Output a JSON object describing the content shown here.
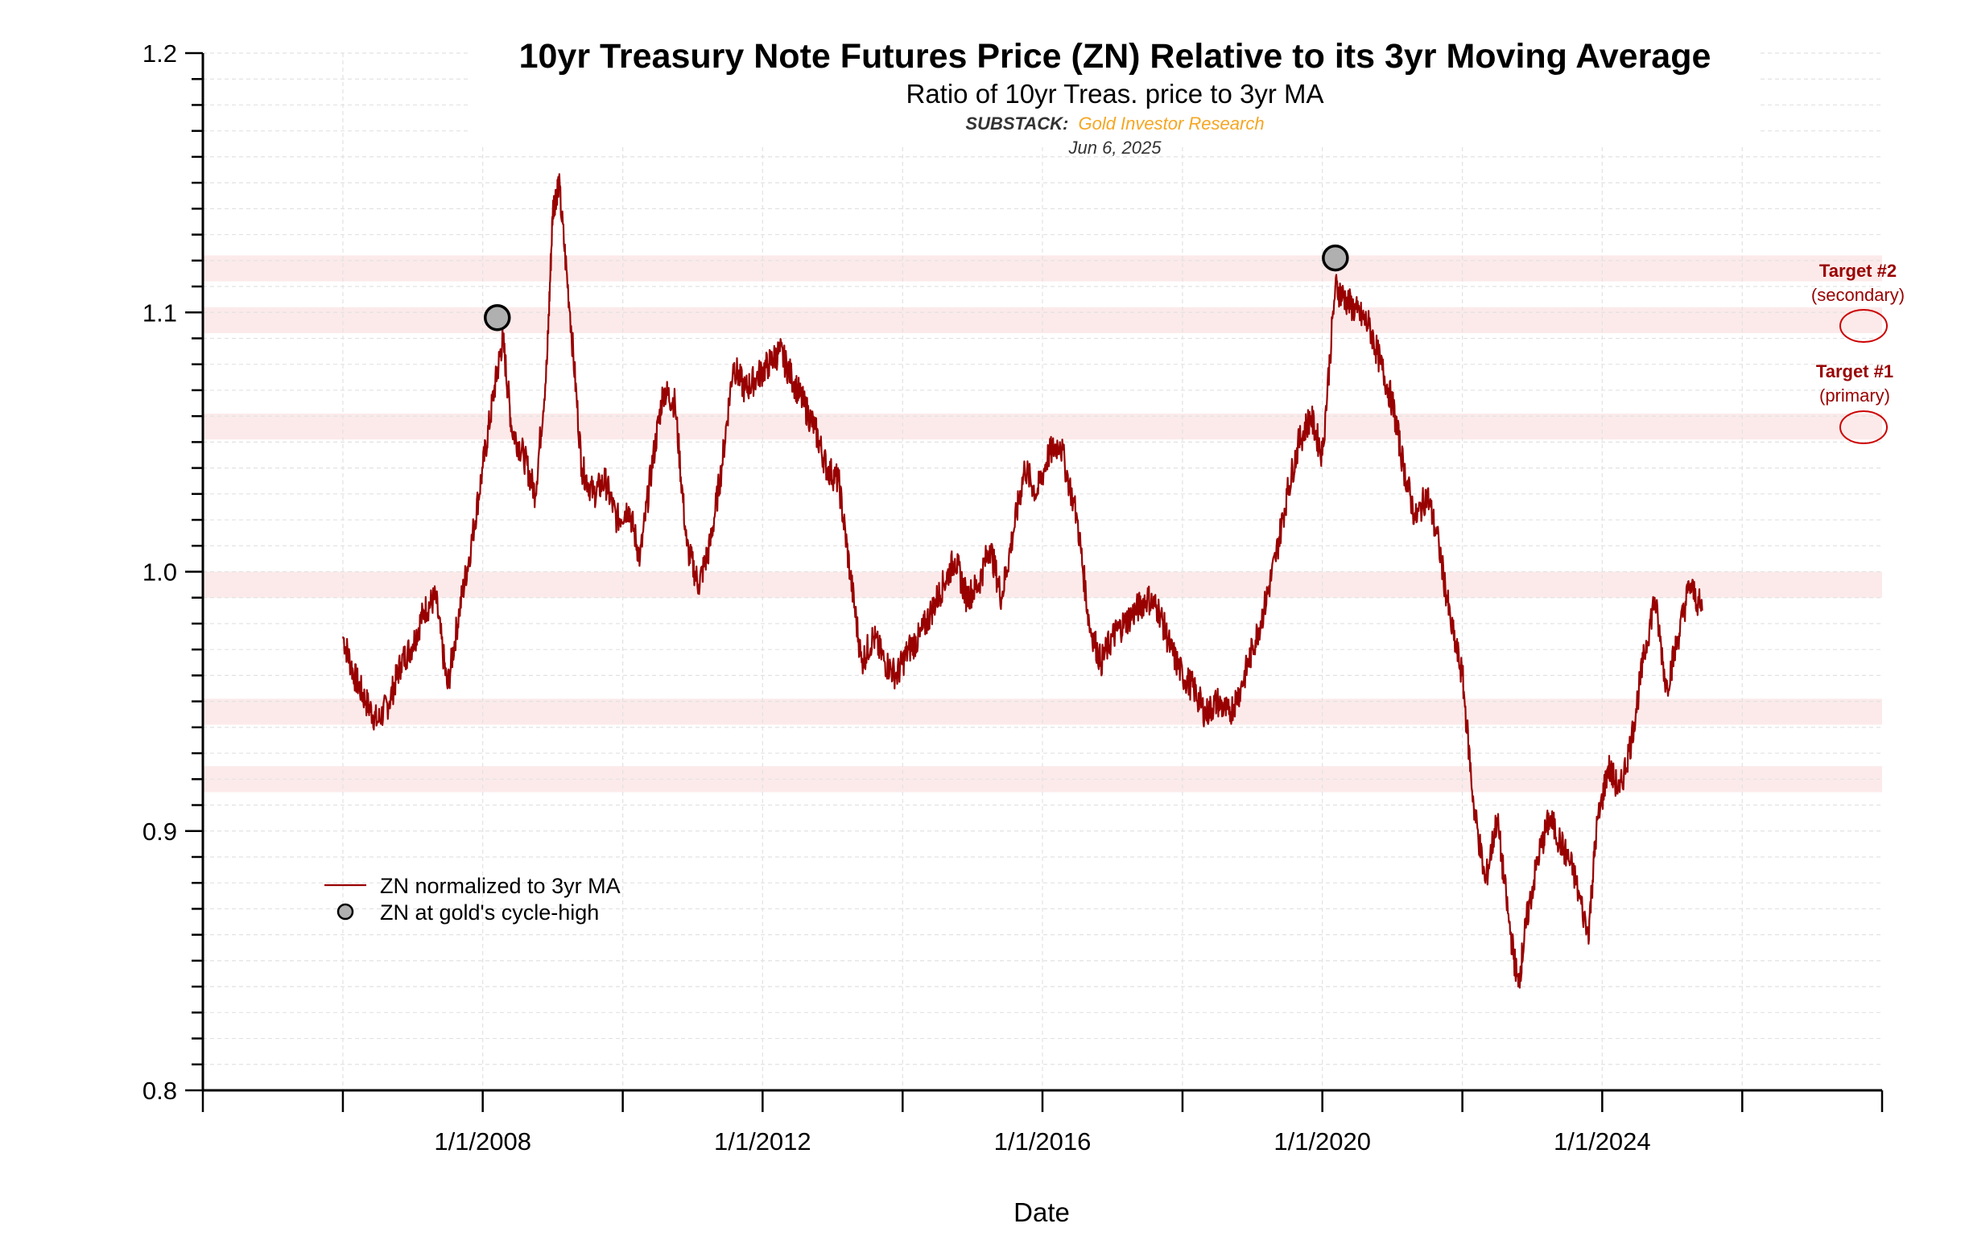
{
  "chart_data": {
    "type": "line",
    "title": "10yr Treasury Note Futures Price (ZN) Relative to its 3yr Moving Average",
    "subtitle": "Ratio of 10yr Treas. price to 3yr MA",
    "source_label": "SUBSTACK:",
    "source_name": "Gold Investor Research",
    "date": "Jun 6, 2025",
    "xlabel": "Date",
    "ylabel": "",
    "ylim": [
      0.8,
      1.2
    ],
    "xlim": [
      "2004-01-01",
      "2028-01-01"
    ],
    "yticks": [
      "0.8",
      "0.9",
      "1.0",
      "1.1",
      "1.2"
    ],
    "xticks": [
      "1/1/2008",
      "1/1/2012",
      "1/1/2016",
      "1/1/2020",
      "1/1/2024"
    ],
    "grid": true,
    "legend_position": "lower-left",
    "colors": {
      "line": "#990000",
      "band": "#fbe3e3",
      "marker_fill": "#b0b0b0",
      "marker_edge": "#000000",
      "source_accent": "#f5a623",
      "source_label": "#333333",
      "target": "#990000"
    },
    "horizontal_bands": [
      {
        "from": 0.915,
        "to": 0.925
      },
      {
        "from": 0.941,
        "to": 0.951
      },
      {
        "from": 0.99,
        "to": 1.0
      },
      {
        "from": 1.051,
        "to": 1.061
      },
      {
        "from": 1.092,
        "to": 1.102
      },
      {
        "from": 1.112,
        "to": 1.122
      }
    ],
    "series": [
      {
        "name": "ZN normalized to 3yr MA",
        "x": [
          "2006-01-01",
          "2006-03-01",
          "2006-05-01",
          "2006-07-01",
          "2006-09-01",
          "2006-11-01",
          "2007-01-01",
          "2007-03-01",
          "2007-05-01",
          "2007-07-01",
          "2007-09-01",
          "2007-11-01",
          "2008-01-01",
          "2008-03-01",
          "2008-04-15",
          "2008-06-01",
          "2008-08-01",
          "2008-10-01",
          "2008-12-01",
          "2009-01-01",
          "2009-02-01",
          "2009-04-01",
          "2009-06-01",
          "2009-08-01",
          "2009-10-01",
          "2009-12-01",
          "2010-02-01",
          "2010-04-01",
          "2010-06-01",
          "2010-08-01",
          "2010-10-01",
          "2010-12-01",
          "2011-02-01",
          "2011-04-01",
          "2011-06-01",
          "2011-08-01",
          "2011-10-01",
          "2011-12-01",
          "2012-02-01",
          "2012-04-01",
          "2012-06-01",
          "2012-08-01",
          "2012-10-01",
          "2012-12-01",
          "2013-02-01",
          "2013-04-01",
          "2013-06-01",
          "2013-08-01",
          "2013-10-01",
          "2013-12-01",
          "2014-02-01",
          "2014-04-01",
          "2014-06-01",
          "2014-08-01",
          "2014-10-01",
          "2014-12-01",
          "2015-02-01",
          "2015-04-01",
          "2015-06-01",
          "2015-08-01",
          "2015-10-01",
          "2015-12-01",
          "2016-02-01",
          "2016-04-01",
          "2016-07-01",
          "2016-09-01",
          "2016-11-01",
          "2017-01-01",
          "2017-03-01",
          "2017-05-01",
          "2017-07-01",
          "2017-09-01",
          "2017-11-01",
          "2018-01-01",
          "2018-03-01",
          "2018-05-01",
          "2018-07-01",
          "2018-09-01",
          "2018-11-01",
          "2019-01-01",
          "2019-03-01",
          "2019-05-01",
          "2019-07-01",
          "2019-09-01",
          "2019-11-01",
          "2020-01-01",
          "2020-03-09",
          "2020-05-01",
          "2020-07-01",
          "2020-09-01",
          "2020-11-01",
          "2021-01-01",
          "2021-03-01",
          "2021-05-01",
          "2021-07-01",
          "2021-09-01",
          "2021-11-01",
          "2022-01-01",
          "2022-03-01",
          "2022-05-01",
          "2022-07-01",
          "2022-09-01",
          "2022-10-20",
          "2022-12-01",
          "2023-02-01",
          "2023-04-01",
          "2023-06-01",
          "2023-08-01",
          "2023-10-20",
          "2023-12-01",
          "2024-02-01",
          "2024-04-01",
          "2024-06-01",
          "2024-08-01",
          "2024-10-01",
          "2024-12-01",
          "2025-02-01",
          "2025-04-01",
          "2025-06-06"
        ],
        "y": [
          0.975,
          0.96,
          0.95,
          0.942,
          0.95,
          0.965,
          0.972,
          0.985,
          0.99,
          0.955,
          0.985,
          1.01,
          1.04,
          1.07,
          1.09,
          1.055,
          1.045,
          1.03,
          1.08,
          1.14,
          1.15,
          1.1,
          1.04,
          1.03,
          1.035,
          1.02,
          1.025,
          1.005,
          1.04,
          1.07,
          1.065,
          1.01,
          0.995,
          1.01,
          1.04,
          1.08,
          1.07,
          1.075,
          1.08,
          1.085,
          1.075,
          1.065,
          1.055,
          1.04,
          1.035,
          1.0,
          0.965,
          0.975,
          0.965,
          0.96,
          0.97,
          0.975,
          0.985,
          0.995,
          1.005,
          0.99,
          0.995,
          1.01,
          0.99,
          1.015,
          1.04,
          1.03,
          1.045,
          1.05,
          1.02,
          0.98,
          0.965,
          0.975,
          0.98,
          0.985,
          0.99,
          0.985,
          0.97,
          0.96,
          0.955,
          0.945,
          0.95,
          0.945,
          0.955,
          0.97,
          0.985,
          1.005,
          1.03,
          1.05,
          1.06,
          1.045,
          1.11,
          1.105,
          1.1,
          1.095,
          1.08,
          1.065,
          1.04,
          1.02,
          1.03,
          1.01,
          0.98,
          0.96,
          0.91,
          0.88,
          0.905,
          0.865,
          0.84,
          0.865,
          0.89,
          0.905,
          0.895,
          0.885,
          0.86,
          0.9,
          0.925,
          0.915,
          0.935,
          0.965,
          0.99,
          0.955,
          0.975,
          0.995,
          0.985
        ]
      }
    ],
    "markers": [
      {
        "name": "ZN at gold's cycle-high",
        "x": "2008-03-17",
        "y": 1.098
      },
      {
        "name": "ZN at gold's cycle-high",
        "x": "2020-03-09",
        "y": 1.121
      }
    ],
    "legend": [
      {
        "label": "ZN normalized to 3yr MA",
        "kind": "line"
      },
      {
        "label": "ZN at gold's cycle-high",
        "kind": "marker"
      }
    ],
    "targets": [
      {
        "title": "Target #2",
        "subtitle": "(secondary)",
        "y": 1.097
      },
      {
        "title": "Target #1",
        "subtitle": "(primary)",
        "y": 1.056
      }
    ]
  }
}
